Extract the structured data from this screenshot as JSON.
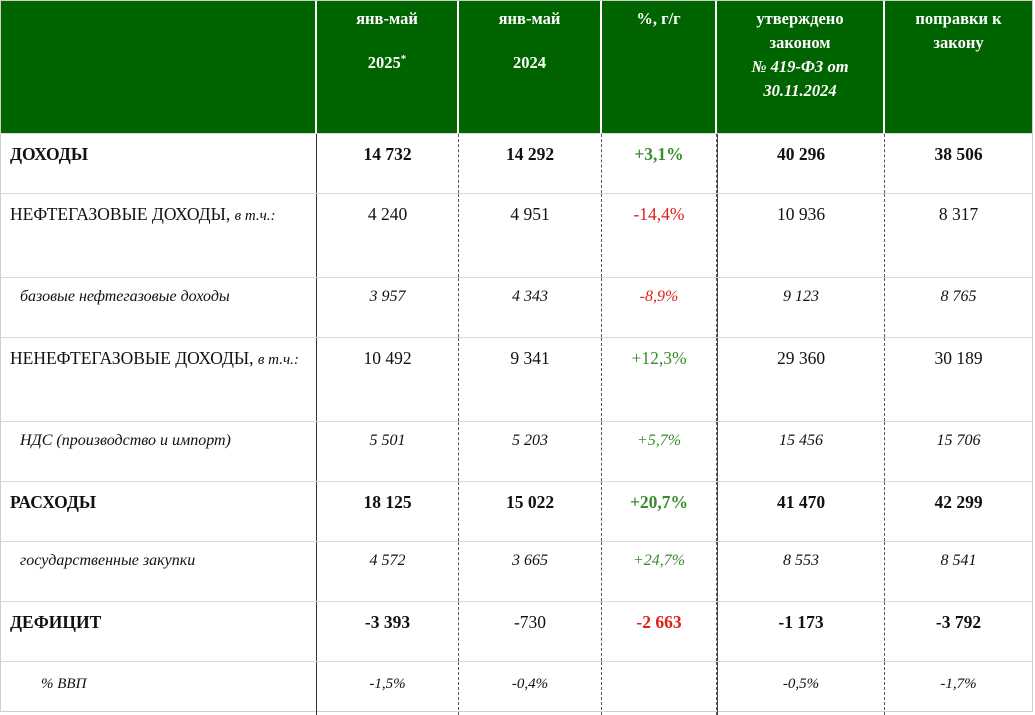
{
  "header": {
    "col1": {
      "line1": "янв-май",
      "line2": "2025",
      "mark": "*"
    },
    "col2": {
      "line1": "янв-май",
      "line2": "2024"
    },
    "col3": {
      "line1": "%, г/г"
    },
    "col4": {
      "line1": "утверждено",
      "line2": "законом",
      "line3": "№ 419-ФЗ от",
      "line4": "30.11.2024"
    },
    "col5": {
      "line1": "поправки к",
      "line2": "закону"
    }
  },
  "rows": [
    {
      "label": "ДОХОДЫ",
      "suffix": "",
      "v2025": "14 732",
      "v2024": "14 292",
      "pct": "+3,1%",
      "law": "40 296",
      "amend": "38 506"
    },
    {
      "label": "НЕФТЕГАЗОВЫЕ ДОХОДЫ,",
      "suffix": "в т.ч.:",
      "v2025": "4 240",
      "v2024": "4 951",
      "pct": "-14,4%",
      "law": "10 936",
      "amend": "8 317"
    },
    {
      "label": "базовые нефтегазовые доходы",
      "suffix": "",
      "v2025": "3 957",
      "v2024": "4 343",
      "pct": "-8,9%",
      "law": "9 123",
      "amend": "8 765"
    },
    {
      "label": "НЕНЕФТЕГАЗОВЫЕ ДОХОДЫ,",
      "suffix": "в т.ч.:",
      "v2025": "10 492",
      "v2024": "9 341",
      "pct": "+12,3%",
      "law": "29 360",
      "amend": "30 189"
    },
    {
      "label": "НДС (производство и импорт)",
      "suffix": "",
      "v2025": "5 501",
      "v2024": "5 203",
      "pct": "+5,7%",
      "law": "15 456",
      "amend": "15 706"
    },
    {
      "label": "РАСХОДЫ",
      "suffix": "",
      "v2025": "18 125",
      "v2024": "15 022",
      "pct": "+20,7%",
      "law": "41 470",
      "amend": "42 299"
    },
    {
      "label": "государственные закупки",
      "suffix": "",
      "v2025": "4 572",
      "v2024": "3 665",
      "pct": "+24,7%",
      "law": "8 553",
      "amend": "8 541"
    },
    {
      "label": "ДЕФИЦИТ",
      "suffix": "",
      "v2025": "-3 393",
      "v2024": "-730",
      "pct": "-2 663",
      "law": "-1 173",
      "amend": "-3 792"
    },
    {
      "label": "% ВВП",
      "suffix": "",
      "v2025": "-1,5%",
      "v2024": "-0,4%",
      "pct": "",
      "law": "-0,5%",
      "amend": "-1,7%"
    }
  ],
  "colors": {
    "header_bg": "#006400",
    "positive": "#3a8a2e",
    "negative": "#e0201a"
  }
}
